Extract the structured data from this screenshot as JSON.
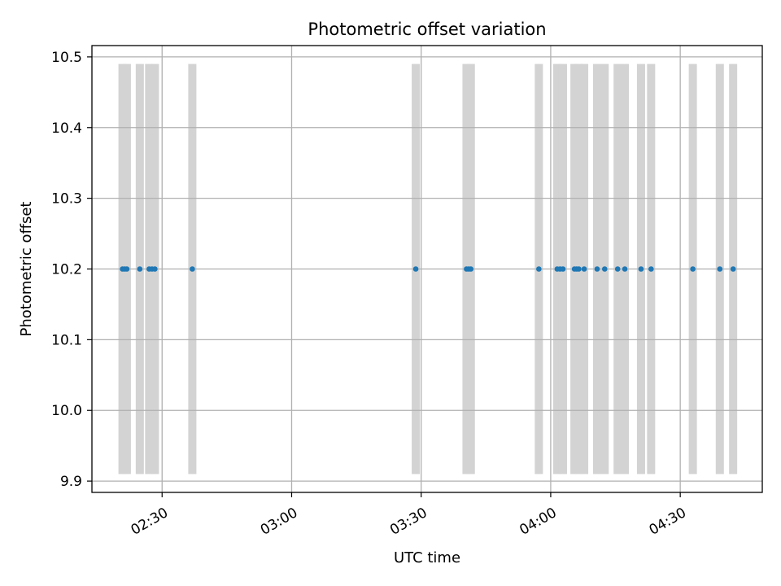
{
  "chart_data": {
    "type": "scatter",
    "title": "Photometric offset variation",
    "xlabel": "UTC time",
    "ylabel": "Photometric offset",
    "x_tick_labels": [
      "02:30",
      "03:00",
      "03:30",
      "04:00",
      "04:30"
    ],
    "x_tick_times": [
      "02:30",
      "03:00",
      "03:30",
      "04:00",
      "04:30"
    ],
    "y_ticks": [
      9.9,
      10.0,
      10.1,
      10.2,
      10.3,
      10.4,
      10.5
    ],
    "y_tick_labels": [
      "9.9",
      "10.0",
      "10.1",
      "10.2",
      "10.3",
      "10.4",
      "10.5"
    ],
    "xlim": [
      "02:13:45",
      "04:49:00"
    ],
    "ylim": [
      9.884,
      10.516
    ],
    "grid": true,
    "series": [
      {
        "points": [
          {
            "x": "02:20:50",
            "y": 10.2
          },
          {
            "x": "02:21:20",
            "y": 10.2
          },
          {
            "x": "02:21:50",
            "y": 10.2
          },
          {
            "x": "02:24:50",
            "y": 10.2
          },
          {
            "x": "02:27:00",
            "y": 10.2
          },
          {
            "x": "02:27:40",
            "y": 10.2
          },
          {
            "x": "02:28:20",
            "y": 10.2
          },
          {
            "x": "02:37:00",
            "y": 10.2
          },
          {
            "x": "03:28:45",
            "y": 10.2
          },
          {
            "x": "03:40:30",
            "y": 10.2
          },
          {
            "x": "03:41:00",
            "y": 10.2
          },
          {
            "x": "03:41:30",
            "y": 10.2
          },
          {
            "x": "03:57:15",
            "y": 10.2
          },
          {
            "x": "04:01:30",
            "y": 10.2
          },
          {
            "x": "04:02:10",
            "y": 10.2
          },
          {
            "x": "04:02:50",
            "y": 10.2
          },
          {
            "x": "04:05:30",
            "y": 10.2
          },
          {
            "x": "04:06:00",
            "y": 10.2
          },
          {
            "x": "04:06:30",
            "y": 10.2
          },
          {
            "x": "04:07:45",
            "y": 10.2
          },
          {
            "x": "04:10:45",
            "y": 10.2
          },
          {
            "x": "04:12:30",
            "y": 10.2
          },
          {
            "x": "04:15:30",
            "y": 10.2
          },
          {
            "x": "04:17:10",
            "y": 10.2
          },
          {
            "x": "04:20:55",
            "y": 10.2
          },
          {
            "x": "04:23:15",
            "y": 10.2
          },
          {
            "x": "04:32:55",
            "y": 10.2
          },
          {
            "x": "04:39:10",
            "y": 10.2
          },
          {
            "x": "04:42:15",
            "y": 10.2
          }
        ],
        "color": "#1f77b4"
      }
    ],
    "bands": {
      "y_range": [
        9.91,
        10.49
      ],
      "color": "#d3d3d3",
      "x": [
        "02:20:50",
        "02:21:50",
        "02:24:50",
        "02:27:00",
        "02:28:20",
        "02:37:00",
        "03:28:45",
        "03:40:30",
        "03:41:30",
        "03:57:15",
        "04:01:30",
        "04:02:50",
        "04:05:30",
        "04:06:30",
        "04:07:45",
        "04:10:45",
        "04:12:30",
        "04:15:30",
        "04:17:10",
        "04:20:55",
        "04:23:15",
        "04:32:55",
        "04:39:10",
        "04:42:15"
      ]
    }
  }
}
